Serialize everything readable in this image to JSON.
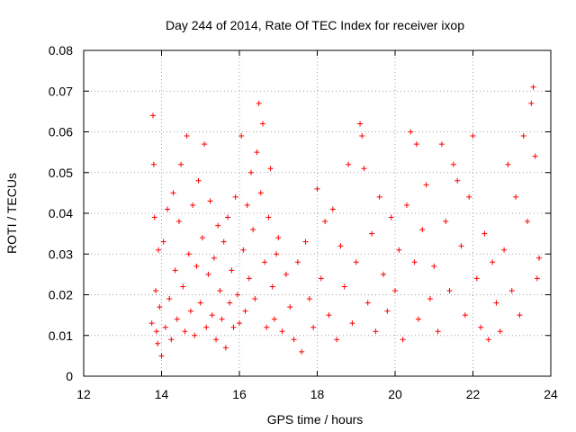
{
  "chart_data": {
    "type": "scatter",
    "title": "Day 244 of 2014, Rate Of TEC Index for receiver ixop",
    "xlabel": "GPS time / hours",
    "ylabel": "ROTI / TECUs",
    "xlim": [
      12,
      24
    ],
    "ylim": [
      0,
      0.08
    ],
    "x_ticks": [
      "12",
      "14",
      "16",
      "18",
      "20",
      "22",
      "24"
    ],
    "y_ticks": [
      "0",
      "0.01",
      "0.02",
      "0.03",
      "0.04",
      "0.05",
      "0.06",
      "0.07",
      "0.08"
    ],
    "grid": true,
    "marker": "+",
    "color": "#ff0000",
    "series": [
      {
        "name": "ROTI",
        "x": [
          13.75,
          13.78,
          13.8,
          13.82,
          13.85,
          13.87,
          13.9,
          13.92,
          13.95,
          14.0,
          14.05,
          14.1,
          14.15,
          14.2,
          14.25,
          14.3,
          14.35,
          14.4,
          14.45,
          14.5,
          14.55,
          14.6,
          14.65,
          14.7,
          14.75,
          14.8,
          14.85,
          14.9,
          14.95,
          15.0,
          15.05,
          15.1,
          15.15,
          15.2,
          15.25,
          15.3,
          15.35,
          15.4,
          15.45,
          15.5,
          15.55,
          15.6,
          15.65,
          15.7,
          15.75,
          15.8,
          15.85,
          15.9,
          15.95,
          16.0,
          16.05,
          16.1,
          16.15,
          16.2,
          16.25,
          16.3,
          16.35,
          16.4,
          16.45,
          16.5,
          16.55,
          16.6,
          16.65,
          16.7,
          16.75,
          16.8,
          16.85,
          16.9,
          16.95,
          17.0,
          17.1,
          17.2,
          17.3,
          17.4,
          17.5,
          17.6,
          17.7,
          17.8,
          17.9,
          18.0,
          18.1,
          18.2,
          18.3,
          18.4,
          18.5,
          18.6,
          18.7,
          18.8,
          18.9,
          19.0,
          19.1,
          19.15,
          19.2,
          19.3,
          19.4,
          19.5,
          19.6,
          19.7,
          19.8,
          19.9,
          20.0,
          20.1,
          20.2,
          20.3,
          20.4,
          20.5,
          20.55,
          20.6,
          20.7,
          20.8,
          20.9,
          21.0,
          21.1,
          21.2,
          21.3,
          21.4,
          21.5,
          21.6,
          21.7,
          21.8,
          21.9,
          22.0,
          22.1,
          22.2,
          22.3,
          22.4,
          22.5,
          22.6,
          22.7,
          22.8,
          22.9,
          23.0,
          23.1,
          23.2,
          23.3,
          23.4,
          23.5,
          23.55,
          23.6,
          23.65,
          23.7
        ],
        "y": [
          0.013,
          0.064,
          0.052,
          0.039,
          0.021,
          0.011,
          0.008,
          0.031,
          0.017,
          0.005,
          0.033,
          0.012,
          0.041,
          0.019,
          0.009,
          0.045,
          0.026,
          0.014,
          0.038,
          0.052,
          0.022,
          0.011,
          0.059,
          0.03,
          0.016,
          0.042,
          0.01,
          0.027,
          0.048,
          0.018,
          0.034,
          0.057,
          0.012,
          0.025,
          0.043,
          0.015,
          0.029,
          0.009,
          0.037,
          0.021,
          0.014,
          0.033,
          0.007,
          0.039,
          0.018,
          0.026,
          0.012,
          0.044,
          0.02,
          0.013,
          0.059,
          0.031,
          0.016,
          0.042,
          0.024,
          0.05,
          0.036,
          0.019,
          0.055,
          0.067,
          0.045,
          0.062,
          0.028,
          0.012,
          0.039,
          0.051,
          0.022,
          0.014,
          0.03,
          0.034,
          0.011,
          0.025,
          0.017,
          0.009,
          0.028,
          0.006,
          0.033,
          0.019,
          0.012,
          0.046,
          0.024,
          0.038,
          0.015,
          0.041,
          0.009,
          0.032,
          0.022,
          0.052,
          0.013,
          0.028,
          0.062,
          0.059,
          0.051,
          0.018,
          0.035,
          0.011,
          0.044,
          0.025,
          0.016,
          0.039,
          0.021,
          0.031,
          0.009,
          0.042,
          0.06,
          0.028,
          0.057,
          0.014,
          0.036,
          0.047,
          0.019,
          0.027,
          0.011,
          0.057,
          0.038,
          0.021,
          0.052,
          0.048,
          0.032,
          0.015,
          0.044,
          0.059,
          0.024,
          0.012,
          0.035,
          0.009,
          0.028,
          0.018,
          0.011,
          0.031,
          0.052,
          0.021,
          0.044,
          0.015,
          0.059,
          0.038,
          0.067,
          0.071,
          0.054,
          0.024,
          0.029
        ]
      }
    ]
  }
}
